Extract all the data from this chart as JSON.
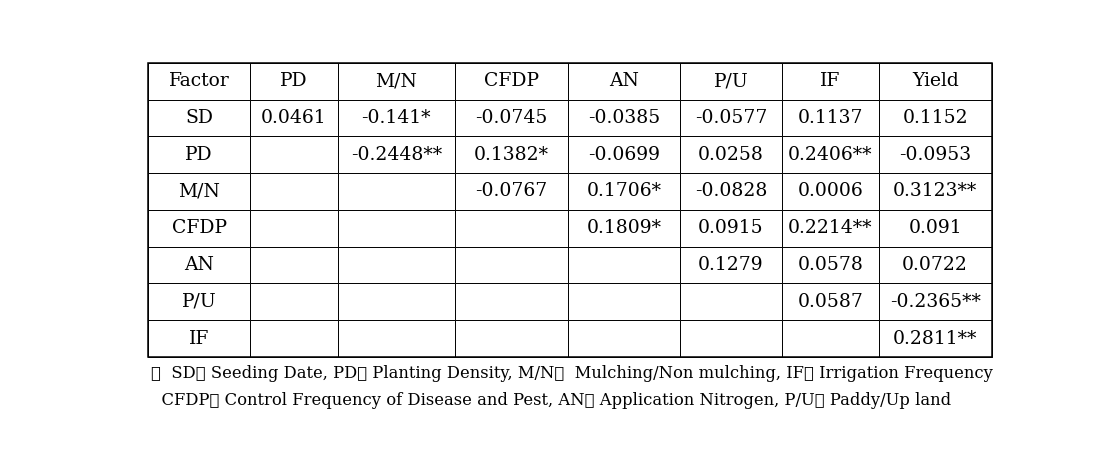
{
  "columns": [
    "Factor",
    "PD",
    "M/N",
    "CFDP",
    "AN",
    "P/U",
    "IF",
    "Yield"
  ],
  "rows": [
    [
      "SD",
      "0.0461",
      "-0.141*",
      "-0.0745",
      "-0.0385",
      "-0.0577",
      "0.1137",
      "0.1152"
    ],
    [
      "PD",
      "",
      "-0.2448**",
      "0.1382*",
      "-0.0699",
      "0.0258",
      "0.2406**",
      "-0.0953"
    ],
    [
      "M/N",
      "",
      "",
      "-0.0767",
      "0.1706*",
      "-0.0828",
      "0.0006",
      "0.3123**"
    ],
    [
      "CFDP",
      "",
      "",
      "",
      "0.1809*",
      "0.0915",
      "0.2214**",
      "0.091"
    ],
    [
      "AN",
      "",
      "",
      "",
      "",
      "0.1279",
      "0.0578",
      "0.0722"
    ],
    [
      "P/U",
      "",
      "",
      "",
      "",
      "",
      "0.0587",
      "-0.2365**"
    ],
    [
      "IF",
      "",
      "",
      "",
      "",
      "",
      "",
      "0.2811**"
    ]
  ],
  "footnote1": "※  SD： Seeding Date, PD： Planting Density, M/N：  Mulching/Non mulching, IF： Irrigation Frequency",
  "footnote2": "  CFDP： Control Frequency of Disease and Pest, AN： Application Nitrogen, P/U： Paddy/Up land",
  "col_widths_rel": [
    1.1,
    0.95,
    1.27,
    1.22,
    1.22,
    1.1,
    1.05,
    1.22
  ],
  "font_size": 13.5,
  "footnote_font_size": 11.8,
  "text_color": "#000000",
  "border_color": "#000000",
  "bg_color": "#ffffff",
  "fig_width": 11.12,
  "fig_height": 4.72,
  "dpi": 100
}
